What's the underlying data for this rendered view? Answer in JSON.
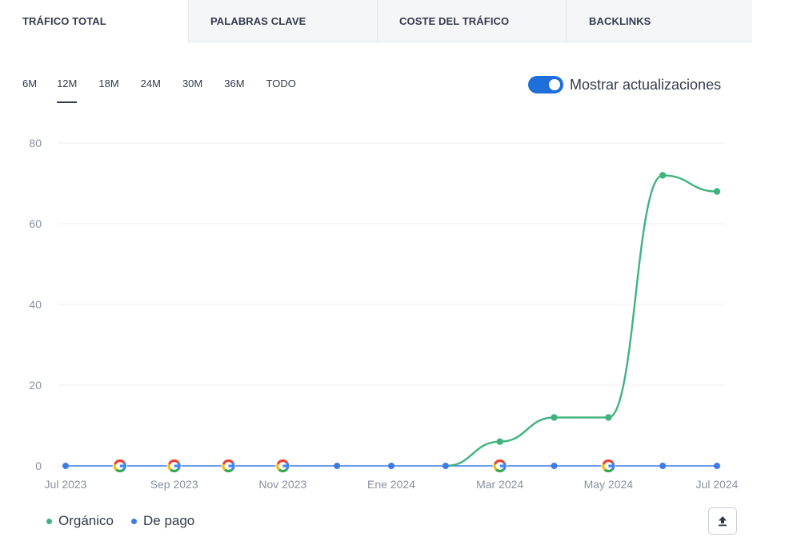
{
  "tabs": [
    {
      "label": "TRÁFICO TOTAL",
      "active": true
    },
    {
      "label": "PALABRAS CLAVE",
      "active": false
    },
    {
      "label": "COSTE DEL TRÁFICO",
      "active": false
    },
    {
      "label": "BACKLINKS",
      "active": false
    }
  ],
  "ranges": [
    {
      "label": "6M",
      "active": false
    },
    {
      "label": "12M",
      "active": true
    },
    {
      "label": "18M",
      "active": false
    },
    {
      "label": "24M",
      "active": false
    },
    {
      "label": "30M",
      "active": false
    },
    {
      "label": "36M",
      "active": false
    },
    {
      "label": "TODO",
      "active": false
    }
  ],
  "toggle": {
    "label": "Mostrar actualizaciones",
    "on": true
  },
  "legend": [
    {
      "label": "Orgánico",
      "color": "#3fb37f"
    },
    {
      "label": "De pago",
      "color": "#3d7be6"
    }
  ],
  "colors": {
    "organic": "#3fb37f",
    "paid": "#3d7be6",
    "grid": "#eceef2",
    "axis_text": "#8a90a0"
  },
  "chart_data": {
    "type": "line",
    "x": [
      "Jul 2023",
      "Ago 2023",
      "Sep 2023",
      "Oct 2023",
      "Nov 2023",
      "Dic 2023",
      "Ene 2024",
      "Feb 2024",
      "Mar 2024",
      "Abr 2024",
      "May 2024",
      "Jun 2024",
      "Jul 2024"
    ],
    "x_tick_labels": [
      "Jul 2023",
      "Sep 2023",
      "Nov 2023",
      "Ene 2024",
      "Mar 2024",
      "May 2024",
      "Jul 2024"
    ],
    "y_ticks": [
      "0",
      "20",
      "40",
      "60",
      "80"
    ],
    "ylim": [
      0,
      80
    ],
    "grid": true,
    "legend_position": "bottom-left",
    "series": [
      {
        "name": "Orgánico",
        "values": [
          0,
          0,
          0,
          0,
          0,
          0,
          0,
          0,
          6,
          12,
          12,
          72,
          68
        ]
      },
      {
        "name": "De pago",
        "values": [
          0,
          0,
          0,
          0,
          0,
          0,
          0,
          0,
          0,
          0,
          0,
          0,
          0
        ]
      }
    ],
    "google_update_markers": [
      1,
      2,
      3,
      4,
      8,
      10
    ]
  }
}
